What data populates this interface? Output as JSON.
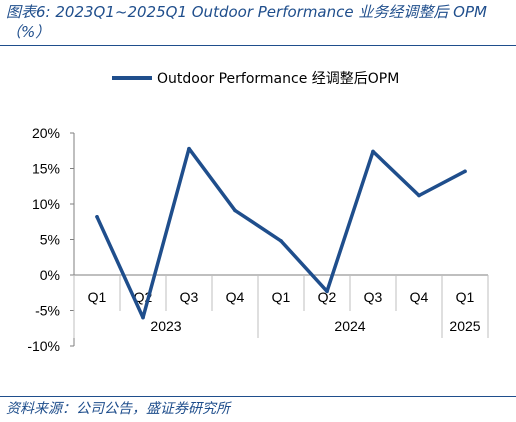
{
  "figure": {
    "title": "图表6:  2023Q1~2025Q1  Outdoor  Performance  业务经调整后  OPM （%）",
    "source": "资料来源：公司公告，盛证券研究所"
  },
  "chart_data": {
    "type": "line",
    "title": "",
    "xlabel": "",
    "ylabel": "",
    "ylim": [
      -10,
      20
    ],
    "yticks": [
      "20%",
      "15%",
      "10%",
      "5%",
      "0%",
      "-5%",
      "-10%"
    ],
    "ytick_values": [
      20,
      15,
      10,
      5,
      0,
      -5,
      -10
    ],
    "categories": [
      "Q1",
      "Q2",
      "Q3",
      "Q4",
      "Q1",
      "Q2",
      "Q3",
      "Q4",
      "Q1"
    ],
    "year_groups": [
      {
        "label": "2023",
        "span": 4
      },
      {
        "label": "2024",
        "span": 4
      },
      {
        "label": "2025",
        "span": 1
      }
    ],
    "legend_position": "top-center",
    "grid": false,
    "series": [
      {
        "name": "Outdoor Performance 经调整后OPM",
        "color": "#1f4e8c",
        "values": [
          8.2,
          -6.0,
          17.8,
          9.1,
          4.8,
          -2.3,
          17.4,
          11.2,
          14.6
        ]
      }
    ]
  }
}
